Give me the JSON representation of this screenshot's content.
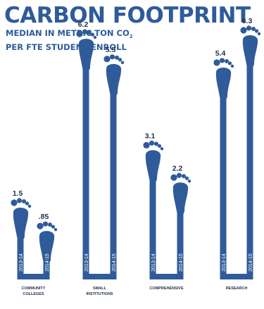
{
  "chart_data": {
    "type": "bar",
    "title": "CARBON FOOTPRINT",
    "subtitle_main": "MEDIAN IN METRIC TON CO",
    "subtitle_sub": "2",
    "subtitle_line2": "PER FTE STUDENT ENROLL",
    "series": [
      {
        "name": "2013-14",
        "values": [
          1.5,
          6.2,
          3.1,
          5.4
        ]
      },
      {
        "name": "2014-15",
        "values": [
          0.85,
          5.5,
          2.2,
          6.3
        ]
      }
    ],
    "groups": [
      {
        "name": "COMMUNITY COLLEGES",
        "label_lines": [
          "COMMUNITY",
          "COLLEGES"
        ],
        "bars": [
          {
            "year": "2013-14",
            "value": 1.5,
            "label": "1.5"
          },
          {
            "year": "2014-15",
            "value": 0.85,
            "label": ".85"
          }
        ]
      },
      {
        "name": "SMALL INSTITUTIONS",
        "label_lines": [
          "SMALL",
          "INSTITUTIONS"
        ],
        "bars": [
          {
            "year": "2013-14",
            "value": 6.2,
            "label": "6.2"
          },
          {
            "year": "2014-15",
            "value": 5.5,
            "label": "5.5"
          }
        ]
      },
      {
        "name": "COMPREHENSIVE",
        "label_lines": [
          "COMPREHENSIVE"
        ],
        "bars": [
          {
            "year": "2013-14",
            "value": 3.1,
            "label": "3.1"
          },
          {
            "year": "2014-15",
            "value": 2.2,
            "label": "2.2"
          }
        ]
      },
      {
        "name": "RESEARCH",
        "label_lines": [
          "RESEARCH"
        ],
        "bars": [
          {
            "year": "2013-14",
            "value": 5.4,
            "label": "5.4"
          },
          {
            "year": "2014-15",
            "value": 6.3,
            "label": "6.3"
          }
        ]
      }
    ],
    "ylim": [
      0,
      7
    ],
    "grid": false,
    "legend": "none"
  },
  "colors": {
    "primary": "#2f5b9a",
    "bar_label": "#1f2f45",
    "year_text": "#ffffff"
  },
  "icons": {
    "bar_top": "footprint-icon"
  }
}
